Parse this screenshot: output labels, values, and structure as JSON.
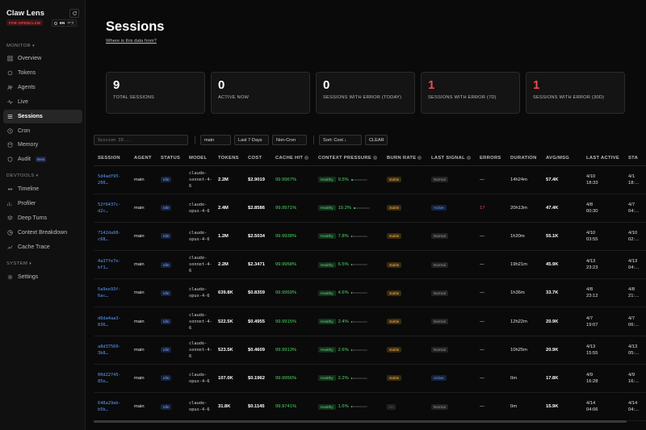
{
  "brand": {
    "title": "Claw Lens",
    "tag": "FOR OPENCLAW",
    "lang_en": "EN",
    "lang_zh": "中文"
  },
  "sidebar": {
    "monitor_label": "MONITOR",
    "monitor_items": [
      {
        "label": "Overview",
        "icon": "grid-icon"
      },
      {
        "label": "Tokens",
        "icon": "coins-icon"
      },
      {
        "label": "Agents",
        "icon": "users-icon"
      },
      {
        "label": "Live",
        "icon": "pulse-icon"
      },
      {
        "label": "Sessions",
        "icon": "list-icon",
        "active": true
      },
      {
        "label": "Cron",
        "icon": "clock-icon"
      },
      {
        "label": "Memory",
        "icon": "database-icon"
      },
      {
        "label": "Audit",
        "icon": "shield-icon",
        "badge": "Beta"
      }
    ],
    "devtools_label": "DEVTOOLS",
    "devtools_items": [
      {
        "label": "Timeline",
        "icon": "timeline-icon"
      },
      {
        "label": "Profiler",
        "icon": "profiler-icon"
      },
      {
        "label": "Deep Turns",
        "icon": "layers-icon"
      },
      {
        "label": "Context Breakdown",
        "icon": "pie-icon"
      },
      {
        "label": "Cache Trace",
        "icon": "trace-icon"
      }
    ],
    "system_label": "SYSTEM",
    "system_items": [
      {
        "label": "Settings",
        "icon": "gear-icon"
      }
    ]
  },
  "page": {
    "title": "Sessions",
    "data_link": "Where is this data from?"
  },
  "stats": [
    {
      "value": "9",
      "label": "TOTAL SESSIONS",
      "color": "#ffffff"
    },
    {
      "value": "0",
      "label": "ACTIVE NOW",
      "color": "#ffffff"
    },
    {
      "value": "0",
      "label": "SESSIONS WITH ERROR (TODAY)",
      "color": "#ffffff"
    },
    {
      "value": "1",
      "label": "SESSIONS WITH ERROR (7D)",
      "color": "#f04a4a"
    },
    {
      "value": "1",
      "label": "SESSIONS WITH ERROR (30D)",
      "color": "#f04a4a"
    }
  ],
  "filters": {
    "search_placeholder": "Session ID...",
    "agent": "main",
    "range": "Last 7 Days",
    "cron": "Non-Cron",
    "sort": "Sort: Cost ↓",
    "clear": "CLEAR"
  },
  "table": {
    "headers": [
      "SESSION",
      "AGENT",
      "STATUS",
      "MODEL",
      "TOKENS",
      "COST",
      "CACHE HIT",
      "CONTEXT PRESSURE",
      "BURN RATE",
      "LAST SIGNAL",
      "ERRORS",
      "DURATION",
      "AVG/MSG",
      "LAST ACTIVE",
      "STA"
    ],
    "rows": [
      {
        "session": "5d4adf95-200…",
        "agent": "main",
        "status": "Idle",
        "model": "claude-sonnet-4-6",
        "tokens": "2.2M",
        "cost": "$2.9019",
        "cache": "99.9967%",
        "pressure_label": "Healthy",
        "pressure": "9.5%",
        "pressure_frac": 0.095,
        "burn": "stable",
        "signal": "Normal",
        "errors": "—",
        "duration": "14h24m",
        "avg": "57.4K",
        "last_date": "4/10",
        "last_time": "18:33",
        "start_date": "4/1",
        "start_time": "18:…"
      },
      {
        "session": "52f6437c-d2c…",
        "agent": "main",
        "status": "Idle",
        "model": "claude-opus-4-6",
        "tokens": "2.4M",
        "cost": "$2.8586",
        "cache": "99.9971%",
        "pressure_label": "Healthy",
        "pressure": "10.2%",
        "pressure_frac": 0.102,
        "burn": "stable",
        "signal": "Active",
        "errors": "17",
        "duration": "20h13m",
        "avg": "47.4K",
        "last_date": "4/8",
        "last_time": "00:30",
        "start_date": "4/7",
        "start_time": "04:…"
      },
      {
        "session": "7142da98-c68…",
        "agent": "main",
        "status": "Idle",
        "model": "claude-opus-4-6",
        "tokens": "1.2M",
        "cost": "$2.5034",
        "cache": "99.9938%",
        "pressure_label": "Healthy",
        "pressure": "7.8%",
        "pressure_frac": 0.078,
        "burn": "stable",
        "signal": "Normal",
        "errors": "—",
        "duration": "1h20m",
        "avg": "55.1K",
        "last_date": "4/10",
        "last_time": "03:55",
        "start_date": "4/10",
        "start_time": "02:…"
      },
      {
        "session": "4a37fe7e-bf1…",
        "agent": "main",
        "status": "Idle",
        "model": "claude-sonnet-4-6",
        "tokens": "2.2M",
        "cost": "$2.3471",
        "cache": "99.9958%",
        "pressure_label": "Healthy",
        "pressure": "6.5%",
        "pressure_frac": 0.065,
        "burn": "stable",
        "signal": "Normal",
        "errors": "—",
        "duration": "19h21m",
        "avg": "45.9K",
        "last_date": "4/13",
        "last_time": "23:23",
        "start_date": "4/13",
        "start_time": "04:…"
      },
      {
        "session": "5a9ee93f-6ac…",
        "agent": "main",
        "status": "Idle",
        "model": "claude-opus-4-6",
        "tokens": "639.8K",
        "cost": "$0.8359",
        "cache": "99.9959%",
        "pressure_label": "Healthy",
        "pressure": "4.6%",
        "pressure_frac": 0.046,
        "burn": "stable",
        "signal": "Normal",
        "errors": "—",
        "duration": "1h36m",
        "avg": "33.7K",
        "last_date": "4/8",
        "last_time": "23:12",
        "start_date": "4/8",
        "start_time": "21:…"
      },
      {
        "session": "d6da4aa3-836…",
        "agent": "main",
        "status": "Idle",
        "model": "claude-sonnet-4-6",
        "tokens": "522.5K",
        "cost": "$0.4955",
        "cache": "99.9915%",
        "pressure_label": "Healthy",
        "pressure": "2.4%",
        "pressure_frac": 0.024,
        "burn": "stable",
        "signal": "Normal",
        "errors": "—",
        "duration": "12h22m",
        "avg": "20.9K",
        "last_date": "4/7",
        "last_time": "19:07",
        "start_date": "4/7",
        "start_time": "06:…"
      },
      {
        "session": "a8d37560-3b8…",
        "agent": "main",
        "status": "Idle",
        "model": "claude-sonnet-4-6",
        "tokens": "523.5K",
        "cost": "$0.4609",
        "cache": "99.9913%",
        "pressure_label": "Healthy",
        "pressure": "2.6%",
        "pressure_frac": 0.026,
        "burn": "stable",
        "signal": "Normal",
        "errors": "—",
        "duration": "10h25m",
        "avg": "20.9K",
        "last_date": "4/13",
        "last_time": "15:55",
        "start_date": "4/13",
        "start_time": "05:…"
      },
      {
        "session": "00d22745-85e…",
        "agent": "main",
        "status": "Idle",
        "model": "claude-opus-4-6",
        "tokens": "107.0K",
        "cost": "$0.1962",
        "cache": "99.9956%",
        "pressure_label": "Healthy",
        "pressure": "2.2%",
        "pressure_frac": 0.022,
        "burn": "stable",
        "signal": "Active",
        "errors": "—",
        "duration": "0m",
        "avg": "17.8K",
        "last_date": "4/9",
        "last_time": "16:28",
        "start_date": "4/9",
        "start_time": "16:…"
      },
      {
        "session": "648a29ab-b5b…",
        "agent": "main",
        "status": "Idle",
        "model": "claude-opus-4-6",
        "tokens": "31.8K",
        "cost": "$0.1145",
        "cache": "99.9741%",
        "pressure_label": "Healthy",
        "pressure": "1.6%",
        "pressure_frac": 0.016,
        "burn": "—",
        "signal": "Normal",
        "errors": "—",
        "duration": "0m",
        "avg": "15.9K",
        "last_date": "4/14",
        "last_time": "04:06",
        "start_date": "4/14",
        "start_time": "04:…"
      }
    ]
  }
}
